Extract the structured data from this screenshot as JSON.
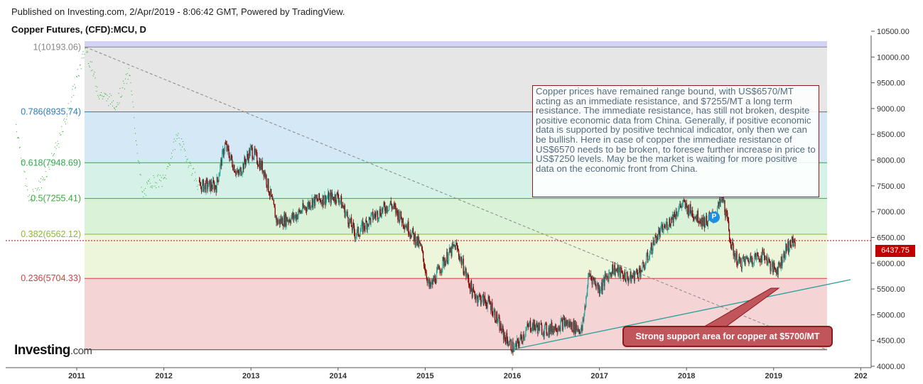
{
  "header": {
    "published": "Published on Investing.com, 2/Apr/2019 - 8:06:42 GMT, Powered by TradingView.",
    "title": "Copper Futures, (CFD):MCU, D"
  },
  "annotation": "Copper prices have remained range bound, with US$6570/MT acting as an immediate resistance, and $7255/MT a long term resistance. The immediate resistance, has still not broken, despite positive economic data from China. Generally, if positive economic data is supported by positive technical indicator, only then we can be bullish. Here in case of copper the immediate resistance of US$6570 needs to be broken, to foresee further increase in price to US$7250 levels. May be the market is waiting for more positive data on the economic front from China.",
  "callout": "Strong support area for copper at $5700/MT",
  "marker_label": "P",
  "current_price_label": "6437.75",
  "logo": {
    "main": "Investing",
    "suffix": ".com"
  },
  "colors": {
    "up": "#26a69a",
    "down": "#8b0000",
    "fib_line": "#b22222"
  },
  "chart_data": {
    "type": "candlestick",
    "symbol": "Copper Futures, (CFD):MCU, D",
    "ylim": [
      4000,
      10800
    ],
    "y_ticks": [
      "10500.00",
      "10000.00",
      "9500.00",
      "9000.00",
      "8500.00",
      "8000.00",
      "7500.00",
      "7000.00",
      "6500.00",
      "6000.00",
      "5500.00",
      "5000.00",
      "4500.00",
      "4000.00"
    ],
    "x_ticks": [
      "2011",
      "2012",
      "2013",
      "2014",
      "2015",
      "2016",
      "2017",
      "2018",
      "2019",
      "202"
    ],
    "last_price": 6437.75,
    "fibonacci_levels": [
      {
        "label": "1(10193.06)",
        "value": 10193.06,
        "color": "#888888",
        "zone_above": "#d3d3f5"
      },
      {
        "label": "0.786(8935.74)",
        "value": 8935.74,
        "color": "#2b7bb9",
        "zone_above": "#e6e6e6"
      },
      {
        "label": "0.618(7948.69)",
        "value": 7948.69,
        "color": "#2fa84f",
        "zone_above": "#d4e8f5"
      },
      {
        "label": "0.5(7255.41)",
        "value": 7255.41,
        "color": "#3aa83a",
        "zone_above": "#d6f2e8"
      },
      {
        "label": "0.382(6562.12)",
        "value": 6562.12,
        "color": "#8cb832",
        "zone_above": "#daf3d8"
      },
      {
        "label": "0.236(5704.33)",
        "value": 5704.33,
        "color": "#d64040",
        "zone_above": "#edf5da"
      }
    ],
    "fib_base": 4320,
    "fib_base_zone": "#f5d4d6",
    "price_path": [
      {
        "t": 2010.3,
        "v": 8700
      },
      {
        "t": 2010.45,
        "v": 7200
      },
      {
        "t": 2010.6,
        "v": 7600
      },
      {
        "t": 2010.8,
        "v": 8400
      },
      {
        "t": 2011.0,
        "v": 9600
      },
      {
        "t": 2011.1,
        "v": 10193
      },
      {
        "t": 2011.25,
        "v": 9300
      },
      {
        "t": 2011.45,
        "v": 9100
      },
      {
        "t": 2011.6,
        "v": 9700
      },
      {
        "t": 2011.75,
        "v": 7300
      },
      {
        "t": 2011.85,
        "v": 7600
      },
      {
        "t": 2012.0,
        "v": 7600
      },
      {
        "t": 2012.15,
        "v": 8500
      },
      {
        "t": 2012.4,
        "v": 7500
      },
      {
        "t": 2012.6,
        "v": 7500
      },
      {
        "t": 2012.7,
        "v": 8300
      },
      {
        "t": 2012.85,
        "v": 7700
      },
      {
        "t": 2013.0,
        "v": 8200
      },
      {
        "t": 2013.15,
        "v": 7800
      },
      {
        "t": 2013.3,
        "v": 6800
      },
      {
        "t": 2013.5,
        "v": 6900
      },
      {
        "t": 2013.7,
        "v": 7200
      },
      {
        "t": 2014.0,
        "v": 7300
      },
      {
        "t": 2014.2,
        "v": 6550
      },
      {
        "t": 2014.4,
        "v": 6900
      },
      {
        "t": 2014.6,
        "v": 7150
      },
      {
        "t": 2014.8,
        "v": 6700
      },
      {
        "t": 2014.95,
        "v": 6300
      },
      {
        "t": 2015.05,
        "v": 5500
      },
      {
        "t": 2015.2,
        "v": 6000
      },
      {
        "t": 2015.35,
        "v": 6350
      },
      {
        "t": 2015.55,
        "v": 5400
      },
      {
        "t": 2015.75,
        "v": 5200
      },
      {
        "t": 2015.9,
        "v": 4600
      },
      {
        "t": 2016.02,
        "v": 4330
      },
      {
        "t": 2016.2,
        "v": 4800
      },
      {
        "t": 2016.4,
        "v": 4700
      },
      {
        "t": 2016.6,
        "v": 4850
      },
      {
        "t": 2016.8,
        "v": 4700
      },
      {
        "t": 2016.88,
        "v": 5800
      },
      {
        "t": 2017.0,
        "v": 5500
      },
      {
        "t": 2017.15,
        "v": 5900
      },
      {
        "t": 2017.35,
        "v": 5700
      },
      {
        "t": 2017.5,
        "v": 5900
      },
      {
        "t": 2017.65,
        "v": 6500
      },
      {
        "t": 2017.8,
        "v": 6800
      },
      {
        "t": 2017.95,
        "v": 7150
      },
      {
        "t": 2018.05,
        "v": 7000
      },
      {
        "t": 2018.2,
        "v": 6800
      },
      {
        "t": 2018.3,
        "v": 6900
      },
      {
        "t": 2018.42,
        "v": 7250
      },
      {
        "t": 2018.52,
        "v": 6300
      },
      {
        "t": 2018.6,
        "v": 6000
      },
      {
        "t": 2018.75,
        "v": 6100
      },
      {
        "t": 2018.9,
        "v": 6150
      },
      {
        "t": 2018.98,
        "v": 5900
      },
      {
        "t": 2019.05,
        "v": 5900
      },
      {
        "t": 2019.15,
        "v": 6300
      },
      {
        "t": 2019.25,
        "v": 6437.75
      }
    ]
  }
}
